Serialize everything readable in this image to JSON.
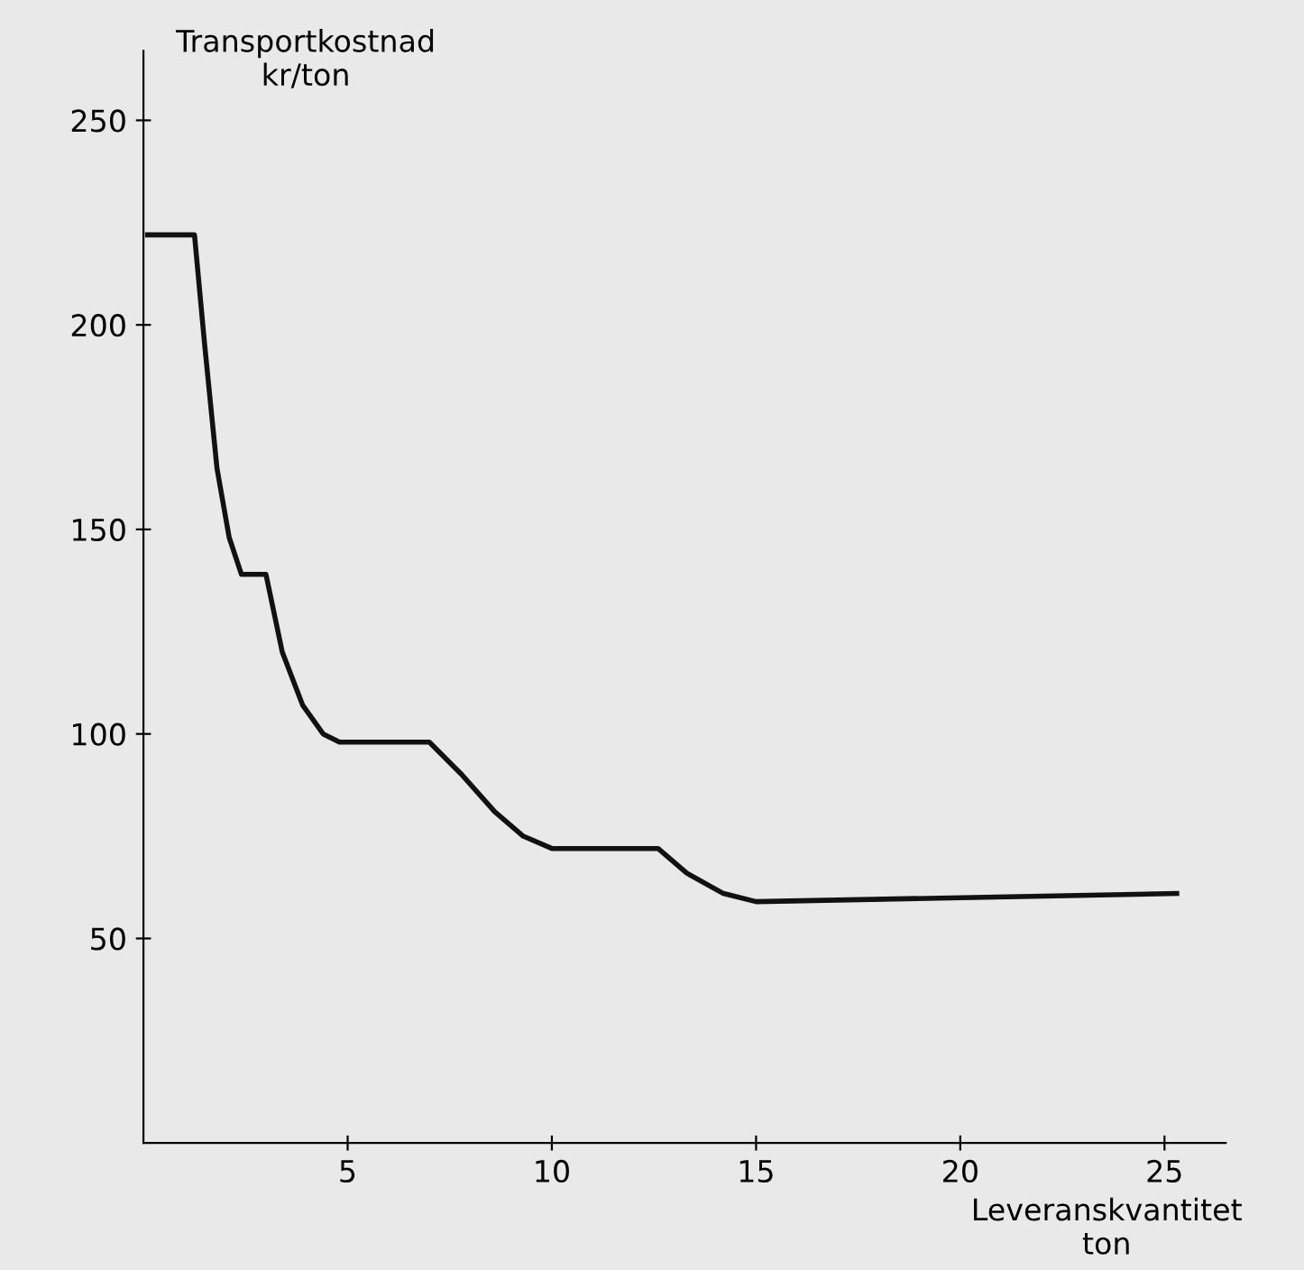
{
  "chart_data": {
    "type": "line",
    "ylabel": "Transportkostnad\nkr/ton",
    "xlabel": "Leveranskvantitet\nton",
    "xlim": [
      0,
      26.5
    ],
    "ylim": [
      0,
      267
    ],
    "xticks": [
      5,
      10,
      15,
      20,
      25
    ],
    "yticks": [
      50,
      100,
      150,
      200,
      250
    ],
    "grid": false,
    "legend": false,
    "marker": "none",
    "line_style": "solid",
    "series": [
      {
        "color": "#111111",
        "x": [
          0.1,
          1.25,
          1.5,
          1.8,
          2.1,
          2.4,
          3.0,
          3.4,
          3.9,
          4.4,
          4.8,
          7.0,
          7.8,
          8.6,
          9.3,
          10,
          12.6,
          13.3,
          14.2,
          15,
          25.3
        ],
        "values": [
          222,
          222,
          195,
          165,
          148,
          139,
          139,
          120,
          107,
          100,
          98,
          98,
          90,
          81,
          75,
          72,
          72,
          66,
          61,
          59,
          61
        ]
      }
    ]
  }
}
